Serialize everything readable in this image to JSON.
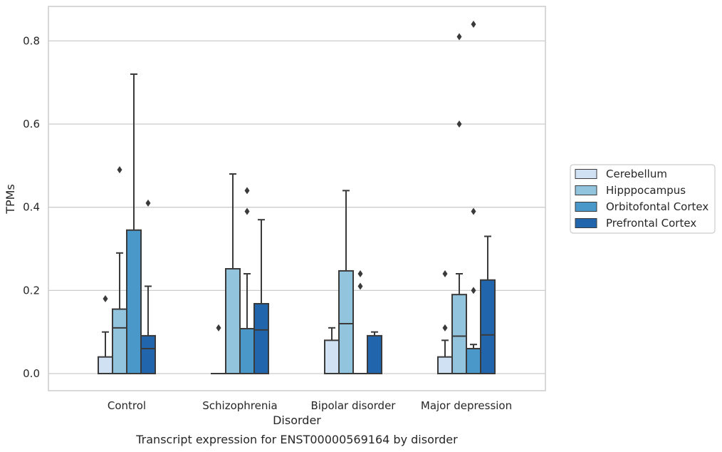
{
  "chart_data": {
    "type": "box",
    "title": "",
    "caption": "Transcript expression for ENST00000569164 by disorder",
    "xlabel": "Disorder",
    "ylabel": "TPMs",
    "ylim": [
      -0.04,
      0.885
    ],
    "yticks": [
      0.0,
      0.2,
      0.4,
      0.6,
      0.8
    ],
    "ytick_labels": [
      "0.0",
      "0.2",
      "0.4",
      "0.6",
      "0.8"
    ],
    "grid": "horizontal",
    "legend_position": "right",
    "categories": [
      "Control",
      "Schizophrenia",
      "Bipolar disorder",
      "Major depression"
    ],
    "series": [
      {
        "name": "Cerebellum",
        "color": "#cfe1f2",
        "boxes": [
          {
            "q1": 0.0,
            "median": 0.0,
            "q3": 0.04,
            "whisker_low": 0.0,
            "whisker_high": 0.1,
            "outliers": [
              0.18
            ]
          },
          {
            "q1": 0.0,
            "median": 0.0,
            "q3": 0.0,
            "whisker_low": 0.0,
            "whisker_high": 0.0,
            "outliers": [
              0.11
            ]
          },
          {
            "q1": 0.0,
            "median": 0.0,
            "q3": 0.08,
            "whisker_low": 0.0,
            "whisker_high": 0.11,
            "outliers": []
          },
          {
            "q1": 0.0,
            "median": 0.0,
            "q3": 0.04,
            "whisker_low": 0.0,
            "whisker_high": 0.08,
            "outliers": [
              0.11,
              0.24
            ]
          }
        ]
      },
      {
        "name": "Hipppocampus",
        "color": "#93c4de",
        "boxes": [
          {
            "q1": 0.0,
            "median": 0.11,
            "q3": 0.155,
            "whisker_low": 0.0,
            "whisker_high": 0.29,
            "outliers": [
              0.49
            ]
          },
          {
            "q1": 0.0,
            "median": 0.0,
            "q3": 0.252,
            "whisker_low": 0.0,
            "whisker_high": 0.48,
            "outliers": []
          },
          {
            "q1": 0.0,
            "median": 0.12,
            "q3": 0.247,
            "whisker_low": 0.0,
            "whisker_high": 0.44,
            "outliers": []
          },
          {
            "q1": 0.0,
            "median": 0.09,
            "q3": 0.19,
            "whisker_low": 0.0,
            "whisker_high": 0.24,
            "outliers": [
              0.6,
              0.81
            ]
          }
        ]
      },
      {
        "name": "Orbitofontal Cortex",
        "color": "#4a98c9",
        "boxes": [
          {
            "q1": 0.0,
            "median": 0.0,
            "q3": 0.345,
            "whisker_low": 0.0,
            "whisker_high": 0.72,
            "outliers": []
          },
          {
            "q1": 0.0,
            "median": 0.0,
            "q3": 0.108,
            "whisker_low": 0.0,
            "whisker_high": 0.24,
            "outliers": [
              0.39,
              0.44
            ]
          },
          {
            "q1": 0.0,
            "median": 0.0,
            "q3": 0.0,
            "whisker_low": 0.0,
            "whisker_high": 0.0,
            "outliers": [
              0.21,
              0.24
            ]
          },
          {
            "q1": 0.0,
            "median": 0.0,
            "q3": 0.06,
            "whisker_low": 0.0,
            "whisker_high": 0.07,
            "outliers": [
              0.2,
              0.39,
              0.84
            ]
          }
        ]
      },
      {
        "name": "Prefrontal Cortex",
        "color": "#2166ac",
        "boxes": [
          {
            "q1": 0.0,
            "median": 0.06,
            "q3": 0.091,
            "whisker_low": 0.0,
            "whisker_high": 0.21,
            "outliers": [
              0.41
            ]
          },
          {
            "q1": 0.0,
            "median": 0.105,
            "q3": 0.168,
            "whisker_low": 0.0,
            "whisker_high": 0.37,
            "outliers": []
          },
          {
            "q1": 0.0,
            "median": 0.0,
            "q3": 0.091,
            "whisker_low": 0.0,
            "whisker_high": 0.1,
            "outliers": []
          },
          {
            "q1": 0.0,
            "median": 0.093,
            "q3": 0.225,
            "whisker_low": 0.0,
            "whisker_high": 0.33,
            "outliers": []
          }
        ]
      }
    ]
  }
}
